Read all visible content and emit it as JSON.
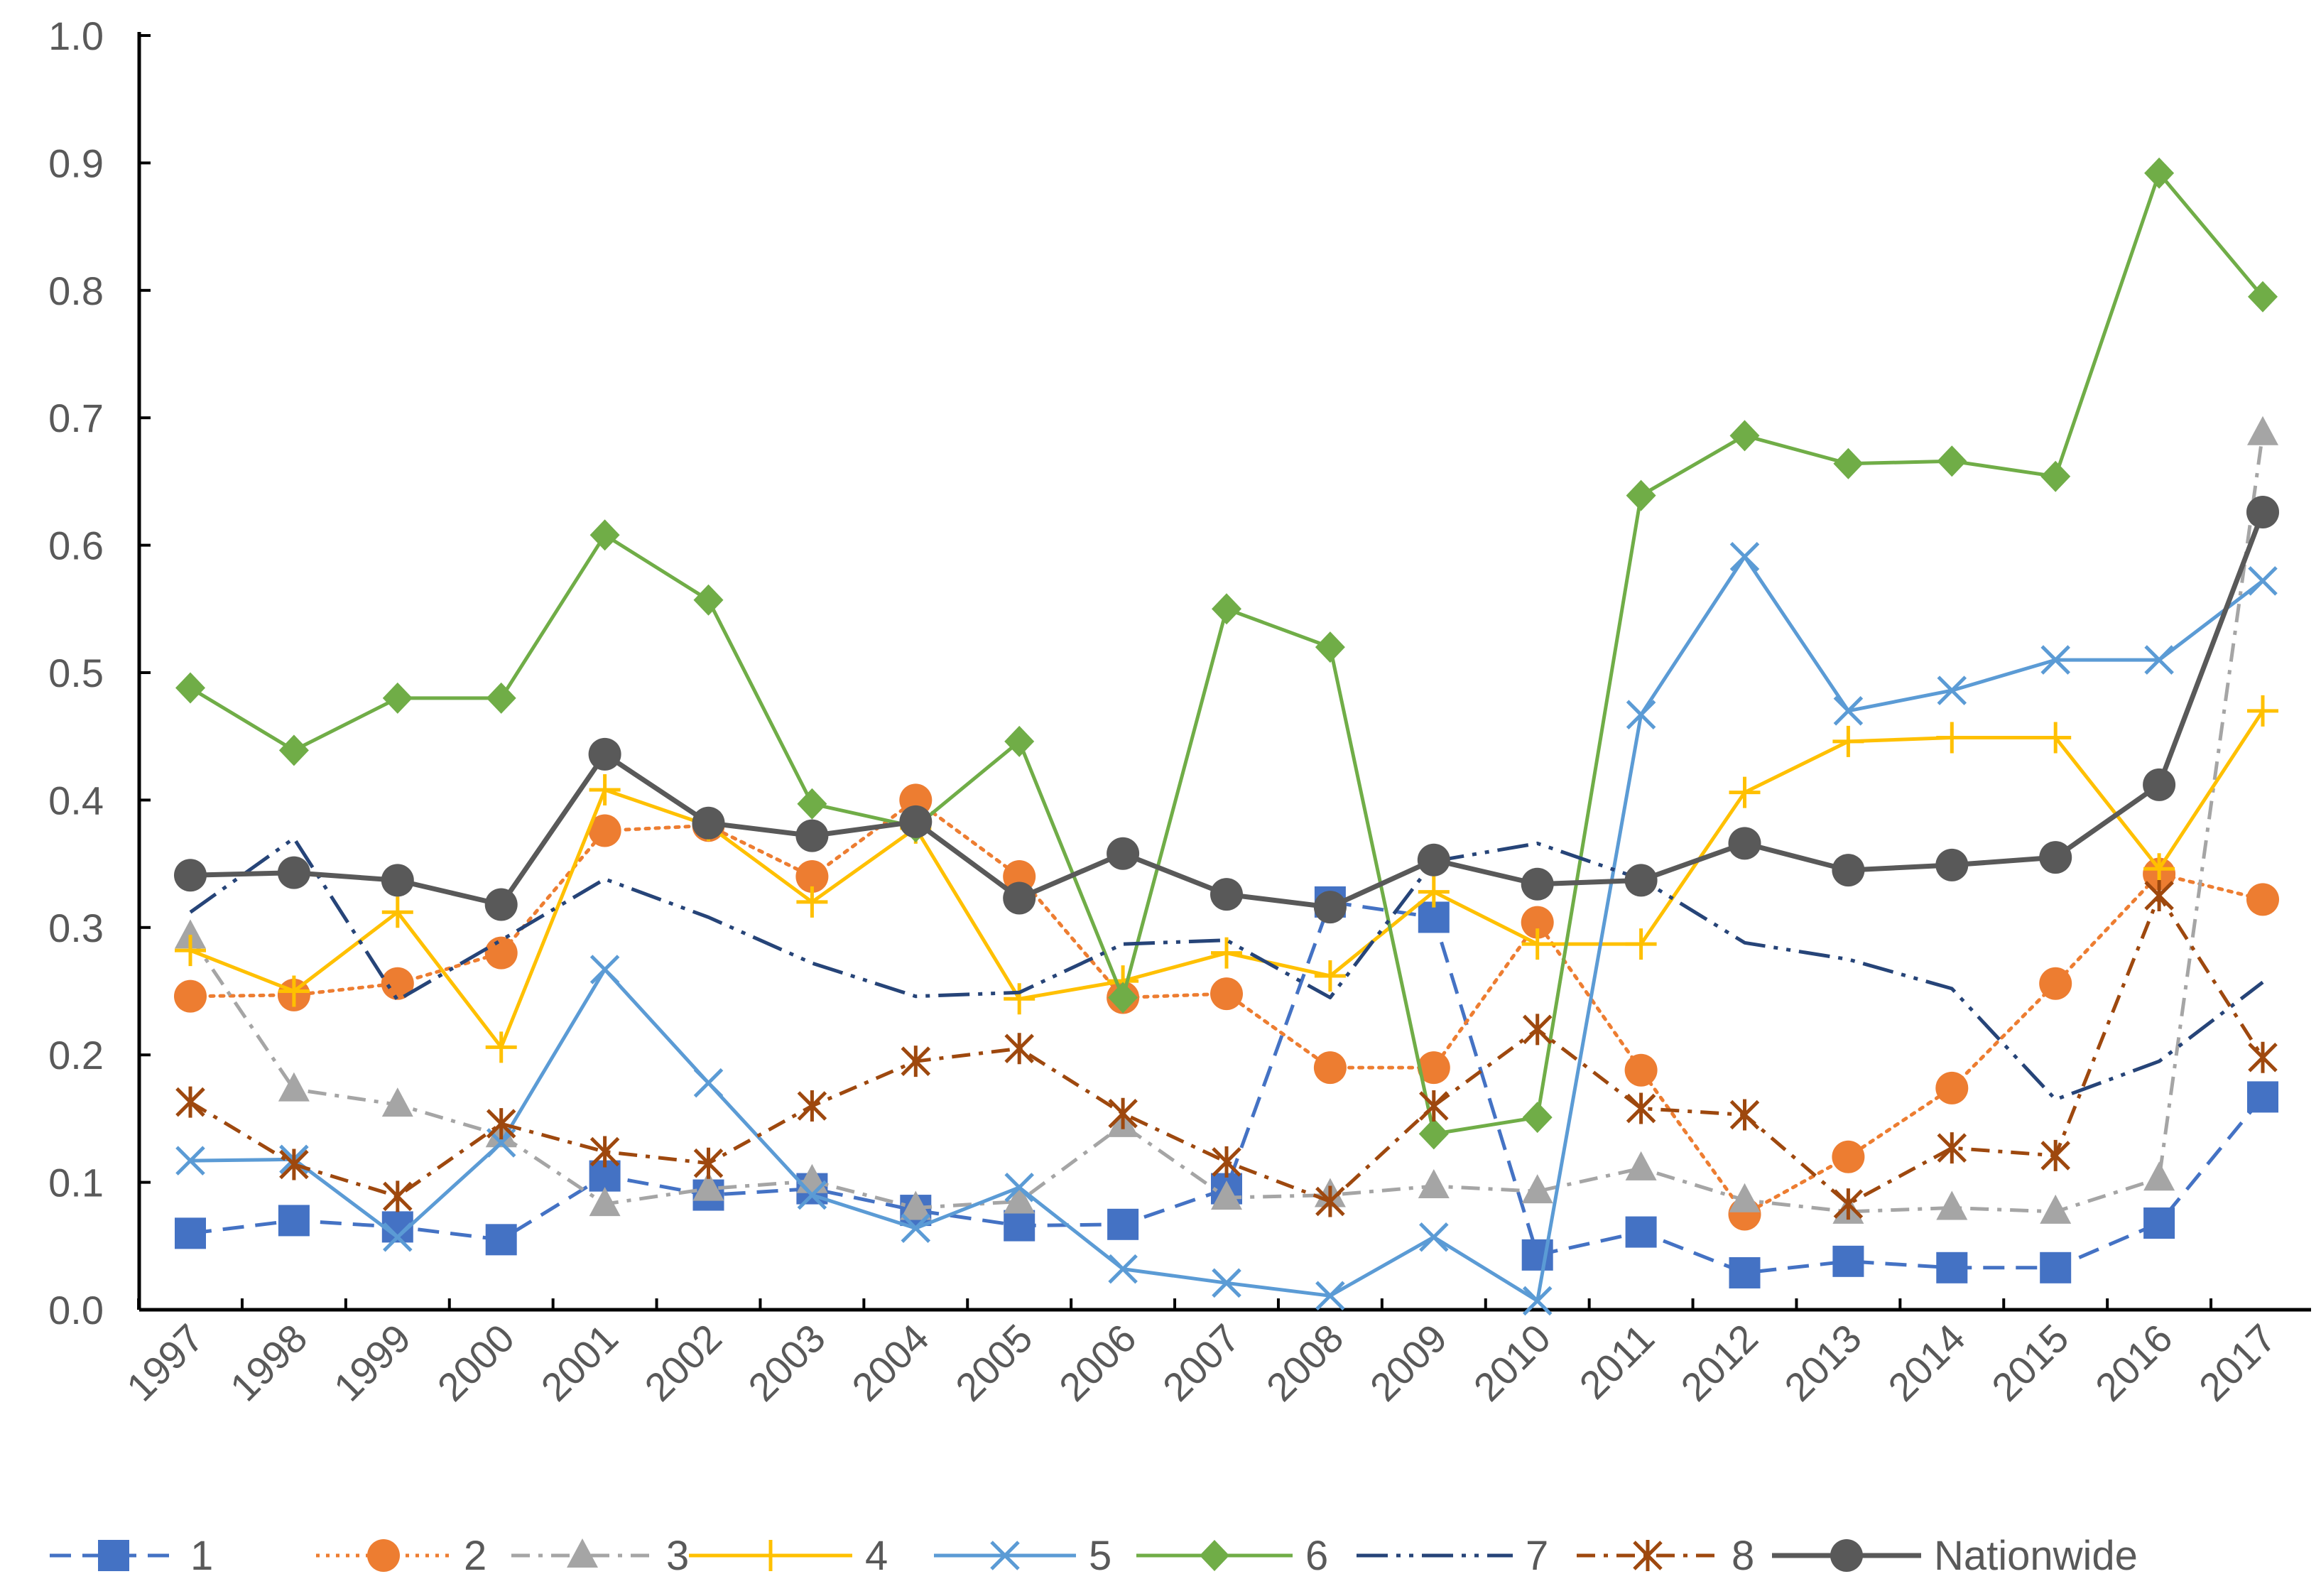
{
  "chart_data": {
    "type": "line",
    "title": "",
    "xlabel": "",
    "ylabel": "",
    "ylim": [
      0.0,
      1.0
    ],
    "yticks": [
      "0.0",
      "0.1",
      "0.2",
      "0.3",
      "0.4",
      "0.5",
      "0.6",
      "0.7",
      "0.8",
      "0.9",
      "1.0"
    ],
    "categories": [
      "1997",
      "1998",
      "1999",
      "2000",
      "2001",
      "2002",
      "2003",
      "2004",
      "2005",
      "2006",
      "2007",
      "2008",
      "2009",
      "2010",
      "2011",
      "2012",
      "2013",
      "2014",
      "2015",
      "2016",
      "2017"
    ],
    "legend_position": "bottom",
    "grid": false,
    "series": [
      {
        "name": "1",
        "color": "#4472C4",
        "dash": "dash",
        "marker": "square",
        "values": [
          0.06,
          0.07,
          0.065,
          0.055,
          0.105,
          0.09,
          0.095,
          0.078,
          0.066,
          0.067,
          0.095,
          0.32,
          0.308,
          0.043,
          0.061,
          0.029,
          0.038,
          0.033,
          0.033,
          0.068,
          0.167
        ]
      },
      {
        "name": "2",
        "color": "#ED7D31",
        "dash": "dot",
        "marker": "circle",
        "values": [
          0.246,
          0.247,
          0.256,
          0.28,
          0.376,
          0.38,
          0.34,
          0.4,
          0.34,
          0.245,
          0.248,
          0.19,
          0.19,
          0.304,
          0.188,
          0.075,
          0.12,
          0.174,
          0.256,
          0.342,
          0.322
        ]
      },
      {
        "name": "3",
        "color": "#A5A5A5",
        "dash": "dashdot",
        "marker": "triangle",
        "values": [
          0.293,
          0.173,
          0.161,
          0.137,
          0.083,
          0.095,
          0.101,
          0.08,
          0.085,
          0.145,
          0.088,
          0.09,
          0.097,
          0.093,
          0.111,
          0.086,
          0.077,
          0.08,
          0.077,
          0.103,
          0.688
        ]
      },
      {
        "name": "4",
        "color": "#FFC000",
        "dash": "solid",
        "marker": "plus",
        "values": [
          0.282,
          0.25,
          0.312,
          0.206,
          0.408,
          0.38,
          0.32,
          0.378,
          0.244,
          0.258,
          0.28,
          0.262,
          0.328,
          0.287,
          0.287,
          0.406,
          0.446,
          0.449,
          0.449,
          0.346,
          0.47
        ]
      },
      {
        "name": "5",
        "color": "#5B9BD5",
        "dash": "solid",
        "marker": "x",
        "values": [
          0.117,
          0.118,
          0.057,
          0.131,
          0.267,
          0.178,
          0.09,
          0.064,
          0.096,
          0.032,
          0.021,
          0.011,
          0.057,
          0.007,
          0.467,
          0.591,
          0.47,
          0.486,
          0.51,
          0.51,
          0.572
        ]
      },
      {
        "name": "6",
        "color": "#70AD47",
        "dash": "solid",
        "marker": "diamond",
        "values": [
          0.488,
          0.439,
          0.48,
          0.48,
          0.608,
          0.557,
          0.397,
          0.379,
          0.446,
          0.245,
          0.55,
          0.52,
          0.138,
          0.151,
          0.639,
          0.686,
          0.664,
          0.666,
          0.654,
          0.892,
          0.795
        ]
      },
      {
        "name": "7",
        "color": "#264478",
        "dash": "longdashdotdot",
        "marker": "none",
        "values": [
          0.312,
          0.37,
          0.243,
          0.29,
          0.338,
          0.308,
          0.272,
          0.246,
          0.249,
          0.287,
          0.29,
          0.245,
          0.352,
          0.366,
          0.338,
          0.288,
          0.275,
          0.252,
          0.165,
          0.195,
          0.257
        ]
      },
      {
        "name": "8",
        "color": "#9E480E",
        "dash": "dashdot",
        "marker": "asterisk",
        "values": [
          0.163,
          0.114,
          0.089,
          0.146,
          0.124,
          0.115,
          0.16,
          0.195,
          0.205,
          0.154,
          0.116,
          0.085,
          0.16,
          0.22,
          0.158,
          0.153,
          0.083,
          0.127,
          0.121,
          0.325,
          0.198
        ]
      },
      {
        "name": "Nationwide",
        "color": "#595959",
        "dash": "solid",
        "marker": "circle",
        "values": [
          0.341,
          0.343,
          0.337,
          0.318,
          0.436,
          0.382,
          0.372,
          0.383,
          0.323,
          0.358,
          0.326,
          0.316,
          0.353,
          0.334,
          0.337,
          0.366,
          0.345,
          0.349,
          0.355,
          0.412,
          0.626
        ]
      }
    ]
  }
}
